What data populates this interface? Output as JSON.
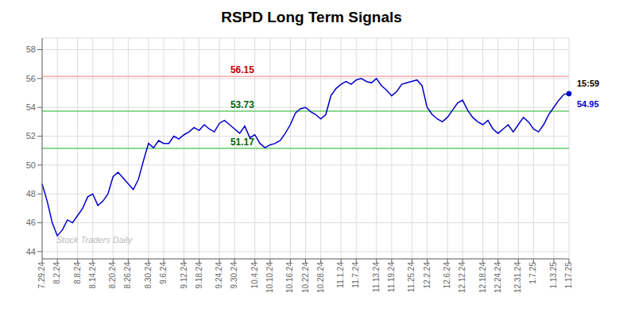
{
  "chart_data": {
    "type": "line",
    "title": "RSPD Long Term Signals",
    "categories": [
      "7.29.24",
      null,
      null,
      "8.2.24",
      null,
      null,
      null,
      "8.8.24",
      null,
      null,
      "8.14.24",
      null,
      null,
      null,
      "8.20.24",
      null,
      null,
      "8.26.24",
      null,
      null,
      null,
      "8.30.24",
      null,
      null,
      "9.6.24",
      null,
      null,
      null,
      "9.12.24",
      null,
      null,
      "9.18.24",
      null,
      null,
      null,
      "9.24.24",
      null,
      null,
      "9.30.24",
      null,
      null,
      null,
      "10.4.24",
      null,
      null,
      "10.10.24",
      null,
      null,
      null,
      "10.16.24",
      null,
      null,
      "10.22.24",
      null,
      null,
      "10.28.24",
      null,
      null,
      null,
      "11.1.24",
      null,
      null,
      "11.7.24",
      null,
      null,
      null,
      "11.13.24",
      null,
      null,
      "11.19.24",
      null,
      null,
      null,
      "11.25.24",
      null,
      null,
      "12.2.24",
      null,
      null,
      null,
      "12.6.24",
      null,
      null,
      "12.12.24",
      null,
      null,
      null,
      "12.18.24",
      null,
      null,
      "12.24.24",
      null,
      null,
      null,
      "12.31.24",
      null,
      null,
      "1.7.25",
      null,
      null,
      null,
      "1.13.25",
      null,
      null,
      "1.17.25"
    ],
    "values": [
      48.7,
      47.5,
      46.0,
      45.1,
      45.5,
      46.2,
      46.0,
      46.5,
      47.0,
      47.8,
      48.0,
      47.2,
      47.5,
      48.0,
      49.2,
      49.5,
      49.1,
      48.7,
      48.3,
      49.0,
      50.3,
      51.5,
      51.2,
      51.7,
      51.5,
      51.5,
      52.0,
      51.8,
      52.1,
      52.3,
      52.6,
      52.4,
      52.8,
      52.5,
      52.3,
      52.9,
      53.1,
      52.8,
      52.5,
      52.2,
      52.7,
      51.9,
      52.1,
      51.5,
      51.2,
      51.4,
      51.5,
      51.7,
      52.2,
      52.8,
      53.6,
      53.9,
      54.0,
      53.7,
      53.5,
      53.2,
      53.5,
      54.8,
      55.3,
      55.6,
      55.8,
      55.6,
      55.9,
      56.0,
      55.8,
      55.7,
      56.0,
      55.5,
      55.2,
      54.8,
      55.1,
      55.6,
      55.7,
      55.8,
      55.9,
      55.5,
      54.0,
      53.5,
      53.2,
      53.0,
      53.3,
      53.8,
      54.3,
      54.5,
      53.8,
      53.3,
      53.0,
      52.8,
      53.1,
      52.5,
      52.2,
      52.5,
      52.8,
      52.3,
      52.8,
      53.3,
      53.0,
      52.5,
      52.3,
      52.8,
      53.5,
      54.0,
      54.5,
      54.9,
      54.95
    ],
    "color": "#0000cc",
    "ylim": [
      43.5,
      58.8
    ],
    "yticks": [
      44,
      46,
      48,
      50,
      52,
      54,
      56,
      58
    ],
    "grid": true,
    "hlines": [
      {
        "value": 56.15,
        "color": "#ffaaaa",
        "label_color": "#cc0000"
      },
      {
        "value": 53.73,
        "color": "#66cc66",
        "label_color": "#006600"
      },
      {
        "value": 51.17,
        "color": "#66cc66",
        "label_color": "#006600"
      }
    ],
    "last_time": "15:59",
    "last_price": 54.95,
    "watermark": "Stock Traders Daily",
    "watermark_color": "#bbbbbb"
  }
}
